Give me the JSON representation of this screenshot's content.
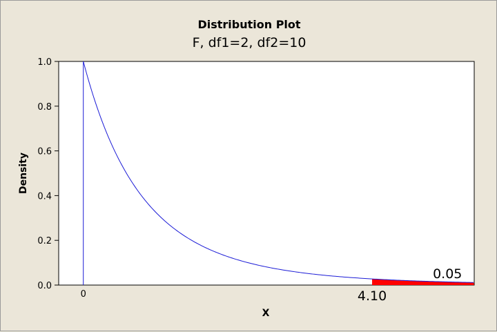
{
  "chart_data": {
    "type": "area",
    "title": "Distribution Plot",
    "subtitle": "F, df1=2, df2=10",
    "xlabel": "X",
    "ylabel": "Density",
    "xlim": [
      -0.35,
      5.55
    ],
    "ylim": [
      0,
      1.0
    ],
    "yticks": [
      "0.0",
      "0.2",
      "0.4",
      "0.6",
      "0.8",
      "1.0"
    ],
    "xticks": [
      "0"
    ],
    "critical_value_label": "4.10",
    "critical_value": 4.1,
    "shaded_area_label": "0.05",
    "distribution": {
      "name": "F",
      "df1": 2,
      "df2": 10
    },
    "series": [
      {
        "x": [
          0,
          0.25,
          0.5,
          0.75,
          1.0,
          1.5,
          2.0,
          2.5,
          3.0,
          3.5,
          4.1,
          4.5,
          5.0,
          5.5
        ],
        "values": [
          1.0,
          0.79,
          0.63,
          0.51,
          0.42,
          0.29,
          0.21,
          0.15,
          0.11,
          0.08,
          0.06,
          0.05,
          0.04,
          0.03
        ]
      }
    ],
    "colors": {
      "curve": "#1a1ad6",
      "shade": "#ff0000",
      "plot_bg": "#ffffff",
      "frame_bg": "#ebe6d9"
    }
  }
}
